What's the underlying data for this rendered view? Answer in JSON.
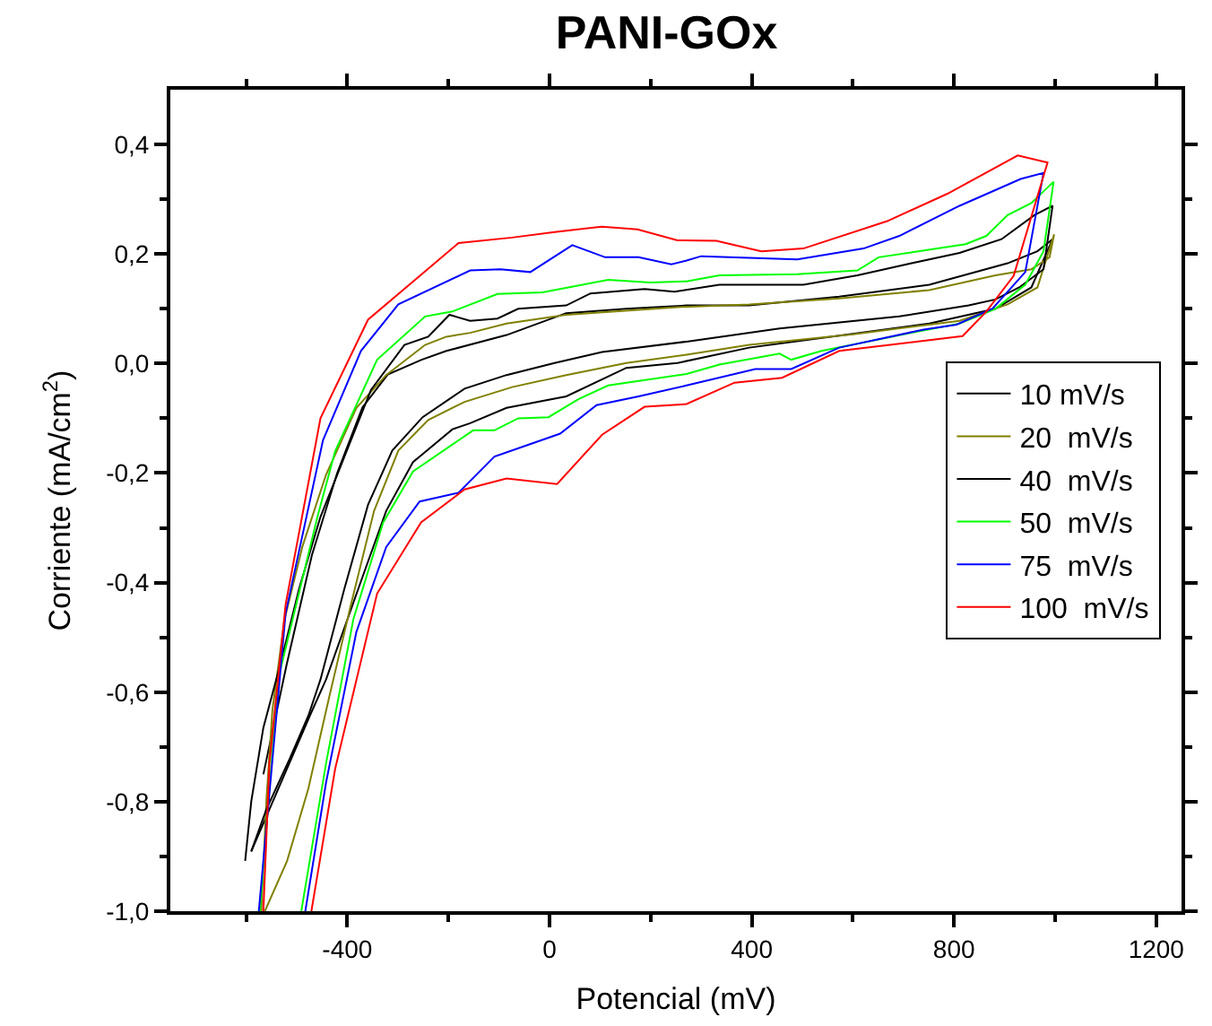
{
  "chart_data": {
    "type": "line",
    "title": "PANI-GOx",
    "xlabel": "Potencial (mV)",
    "ylabel": "Corriente (mA/cm$^{2}$)",
    "xlim": [
      -750,
      1250
    ],
    "ylim": [
      -1.0,
      0.5
    ],
    "xticks": [
      {
        "value": -600,
        "label": null
      },
      -400,
      {
        "value": -200,
        "label": null
      },
      0,
      {
        "value": 200,
        "label": null
      },
      400,
      {
        "value": 600,
        "label": null
      },
      800,
      {
        "value": 1000,
        "label": null
      },
      1200
    ],
    "yticks": [
      {
        "value": -1.0,
        "label": "-1,0"
      },
      {
        "value": -0.9,
        "label": null
      },
      {
        "value": -0.8,
        "label": "-0,8"
      },
      {
        "value": -0.7,
        "label": null
      },
      {
        "value": -0.6,
        "label": "-0,6"
      },
      {
        "value": -0.5,
        "label": null
      },
      {
        "value": -0.4,
        "label": "-0,4"
      },
      {
        "value": -0.3,
        "label": null
      },
      {
        "value": -0.2,
        "label": "-0,2"
      },
      {
        "value": -0.1,
        "label": null
      },
      {
        "value": 0.0,
        "label": "0,0"
      },
      {
        "value": 0.1,
        "label": null
      },
      {
        "value": 0.2,
        "label": "0,2"
      },
      {
        "value": 0.3,
        "label": null
      },
      {
        "value": 0.4,
        "label": "0,4"
      }
    ],
    "legend": "right",
    "marker": "none",
    "line_style": "solid",
    "series": [
      {
        "name": "10 mV/s",
        "color": "#000000",
        "x": [
          -566,
          -520,
          -470,
          -420,
          -370,
          -320,
          -253,
          -204,
          -85,
          33,
          152,
          271,
          395,
          573,
          751,
          906,
          965,
          995,
          953,
          882,
          751,
          573,
          395,
          253,
          152,
          33,
          -85,
          -157,
          -192,
          -270,
          -323,
          -370,
          -442,
          -474,
          -590
        ],
        "values": [
          -0.75,
          -0.55,
          -0.35,
          -0.2,
          -0.08,
          -0.02,
          0.007,
          0.023,
          0.052,
          0.092,
          0.1,
          0.106,
          0.106,
          0.122,
          0.144,
          0.183,
          0.205,
          0.227,
          0.139,
          0.1,
          0.073,
          0.051,
          0.029,
          0.001,
          -0.008,
          -0.06,
          -0.081,
          -0.109,
          -0.12,
          -0.18,
          -0.269,
          -0.39,
          -0.577,
          -0.643,
          -0.891
        ]
      },
      {
        "name": "20  mV/s",
        "color": "#808000",
        "x": [
          -563,
          -519,
          -477,
          -436,
          -394,
          -347,
          -299,
          -240,
          -168,
          -74,
          33,
          152,
          271,
          395,
          597,
          811,
          906,
          965,
          998,
          989,
          953,
          882,
          751,
          573,
          395,
          253,
          33,
          -85,
          -157,
          -204,
          -246,
          -323,
          -382,
          -442,
          -489,
          -524,
          -548,
          -560,
          -570
        ],
        "values": [
          -1.0,
          -0.908,
          -0.776,
          -0.61,
          -0.445,
          -0.269,
          -0.159,
          -0.103,
          -0.07,
          -0.043,
          -0.021,
          0.001,
          0.016,
          0.034,
          0.053,
          0.078,
          0.108,
          0.139,
          0.236,
          0.194,
          0.172,
          0.161,
          0.134,
          0.119,
          0.108,
          0.103,
          0.089,
          0.073,
          0.056,
          0.049,
          0.034,
          -0.021,
          -0.081,
          -0.203,
          -0.335,
          -0.467,
          -0.632,
          -0.798,
          -1.0
        ]
      },
      {
        "name": "40  mV/s",
        "color": "#000000",
        "x": [
          -602,
          -590,
          -566,
          -531,
          -495,
          -453,
          -353,
          -287,
          -240,
          -198,
          -157,
          -103,
          -62,
          33,
          81,
          188,
          247,
          336,
          502,
          609,
          716,
          811,
          894,
          959,
          995,
          977,
          929,
          882,
          829,
          692,
          455,
          271,
          104,
          10,
          -85,
          -168,
          -251,
          -311,
          -359,
          -406,
          -453,
          -477,
          -513,
          -560,
          -590
        ],
        "values": [
          -0.908,
          -0.8,
          -0.665,
          -0.544,
          -0.41,
          -0.28,
          -0.048,
          0.034,
          0.049,
          0.089,
          0.078,
          0.082,
          0.1,
          0.106,
          0.128,
          0.136,
          0.131,
          0.144,
          0.144,
          0.161,
          0.183,
          0.202,
          0.227,
          0.271,
          0.288,
          0.172,
          0.139,
          0.117,
          0.106,
          0.086,
          0.064,
          0.04,
          0.021,
          0.001,
          -0.021,
          -0.046,
          -0.098,
          -0.159,
          -0.258,
          -0.412,
          -0.577,
          -0.643,
          -0.72,
          -0.814,
          -0.891
        ]
      },
      {
        "name": "50  mV/s",
        "color": "#00ff00",
        "x": [
          -573,
          -537,
          -459,
          -424,
          -341,
          -246,
          -192,
          -103,
          -14,
          116,
          199,
          271,
          336,
          490,
          609,
          651,
          823,
          864,
          906,
          953,
          997,
          977,
          941,
          882,
          811,
          716,
          538,
          478,
          455,
          336,
          271,
          116,
          57,
          -2,
          -62,
          -109,
          -151,
          -270,
          -329,
          -388,
          -442,
          -491
        ],
        "values": [
          -1.0,
          -0.577,
          -0.28,
          -0.16,
          0.007,
          0.086,
          0.095,
          0.127,
          0.13,
          0.153,
          0.148,
          0.15,
          0.161,
          0.163,
          0.17,
          0.194,
          0.218,
          0.233,
          0.271,
          0.293,
          0.332,
          0.205,
          0.144,
          0.1,
          0.073,
          0.056,
          0.023,
          0.007,
          0.018,
          -0.002,
          -0.019,
          -0.04,
          -0.065,
          -0.098,
          -0.1,
          -0.122,
          -0.122,
          -0.197,
          -0.29,
          -0.467,
          -0.73,
          -1.0
        ]
      },
      {
        "name": "75  mV/s",
        "color": "#0000ff",
        "x": [
          -575,
          -522,
          -448,
          -373,
          -299,
          -157,
          -97,
          -38,
          45,
          110,
          176,
          241,
          271,
          300,
          490,
          621,
          692,
          811,
          932,
          977,
          941,
          876,
          805,
          740,
          573,
          478,
          407,
          271,
          176,
          93,
          21,
          -109,
          -180,
          -257,
          -323,
          -382,
          -442,
          -483
        ],
        "values": [
          -1.0,
          -0.456,
          -0.14,
          0.023,
          0.108,
          0.17,
          0.172,
          0.167,
          0.216,
          0.194,
          0.194,
          0.181,
          0.188,
          0.196,
          0.19,
          0.21,
          0.233,
          0.288,
          0.337,
          0.348,
          0.167,
          0.1,
          0.071,
          0.062,
          0.029,
          -0.01,
          -0.01,
          -0.04,
          -0.06,
          -0.076,
          -0.128,
          -0.17,
          -0.236,
          -0.252,
          -0.335,
          -0.49,
          -0.765,
          -1.0
        ]
      },
      {
        "name": "100  mV/s",
        "color": "#ff0000",
        "x": [
          -566,
          -554,
          -522,
          -453,
          -359,
          -180,
          -74,
          10,
          103,
          174,
          253,
          330,
          419,
          502,
          668,
          787,
          926,
          985,
          918,
          864,
          817,
          573,
          460,
          366,
          271,
          188,
          104,
          15,
          -85,
          -168,
          -254,
          -341,
          -424,
          -471
        ],
        "values": [
          -1.0,
          -0.73,
          -0.44,
          -0.1,
          0.08,
          0.22,
          0.23,
          0.24,
          0.25,
          0.245,
          0.225,
          0.224,
          0.205,
          0.21,
          0.26,
          0.31,
          0.38,
          0.367,
          0.16,
          0.095,
          0.05,
          0.023,
          -0.026,
          -0.035,
          -0.074,
          -0.079,
          -0.13,
          -0.22,
          -0.21,
          -0.23,
          -0.29,
          -0.42,
          -0.74,
          -1.0
        ]
      }
    ]
  }
}
